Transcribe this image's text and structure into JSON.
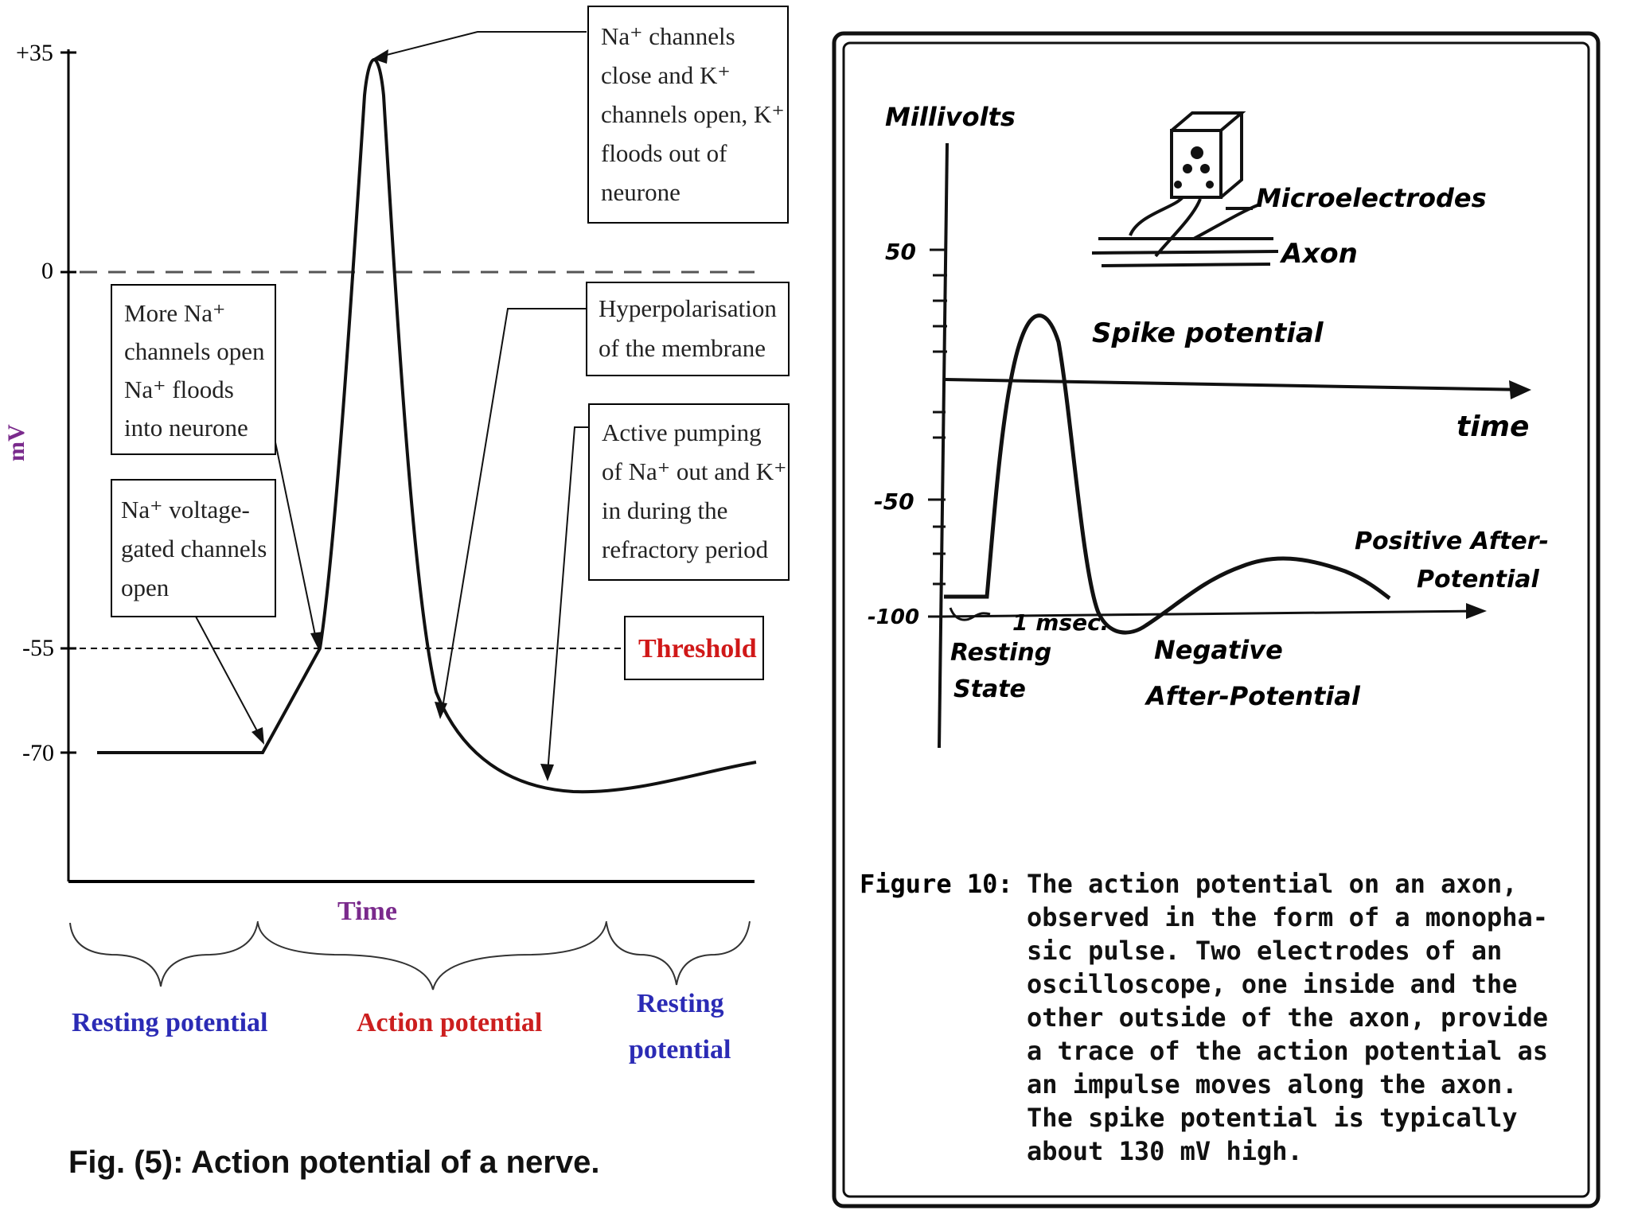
{
  "left_figure": {
    "y_axis_label": "mV",
    "y_ticks": [
      "+35",
      "0",
      "-55",
      "-70"
    ],
    "x_axis_label": "Time",
    "threshold_label": "Threshold",
    "annotations": {
      "na_close": [
        "Na⁺ channels",
        "close and K⁺",
        "channels open, K⁺",
        "floods out of",
        "neurone"
      ],
      "hyperpolarisation": [
        "Hyperpolarisation",
        "of the membrane"
      ],
      "active_pumping": [
        "Active pumping",
        "of Na⁺ out and K⁺",
        "in during the",
        "refractory period"
      ],
      "more_na": [
        "More Na⁺",
        "channels open",
        "Na⁺ floods",
        "into neurone"
      ],
      "na_gated": [
        "Na⁺ voltage-",
        "gated channels",
        "open"
      ]
    },
    "phases": {
      "resting_1": "Resting potential",
      "action": "Action potential",
      "resting_2_line1": "Resting",
      "resting_2_line2": "potential"
    },
    "caption": "Fig. (5): Action potential of a nerve.",
    "colors": {
      "phase_blue": "#2b2bb5",
      "phase_red": "#cc1f1f",
      "axis_purple": "#7a2a8c",
      "threshold_red": "#d01818"
    }
  },
  "right_figure": {
    "y_axis_label": "Millivolts",
    "y_ticks": [
      "50",
      "-50",
      "-100"
    ],
    "time_label": "time",
    "microelectrodes_label": "Microelectrodes",
    "axon_label": "Axon",
    "spike_label": "Spike potential",
    "positive_after": [
      "Positive After-",
      "Potential"
    ],
    "negative_after": [
      "Negative",
      "After-Potential"
    ],
    "resting_state": [
      "Resting",
      "State"
    ],
    "msec_label": "1 msec.",
    "caption_label": "Figure 10:",
    "caption_lines": [
      "The action potential on an axon,",
      "observed in the form of a monopha-",
      "sic pulse. Two electrodes of an",
      "oscilloscope, one inside and the",
      "other outside of the axon, provide",
      "a trace of the action potential as",
      "an impulse moves along the axon.",
      "The spike potential is typically",
      "about 130 mV high."
    ]
  }
}
